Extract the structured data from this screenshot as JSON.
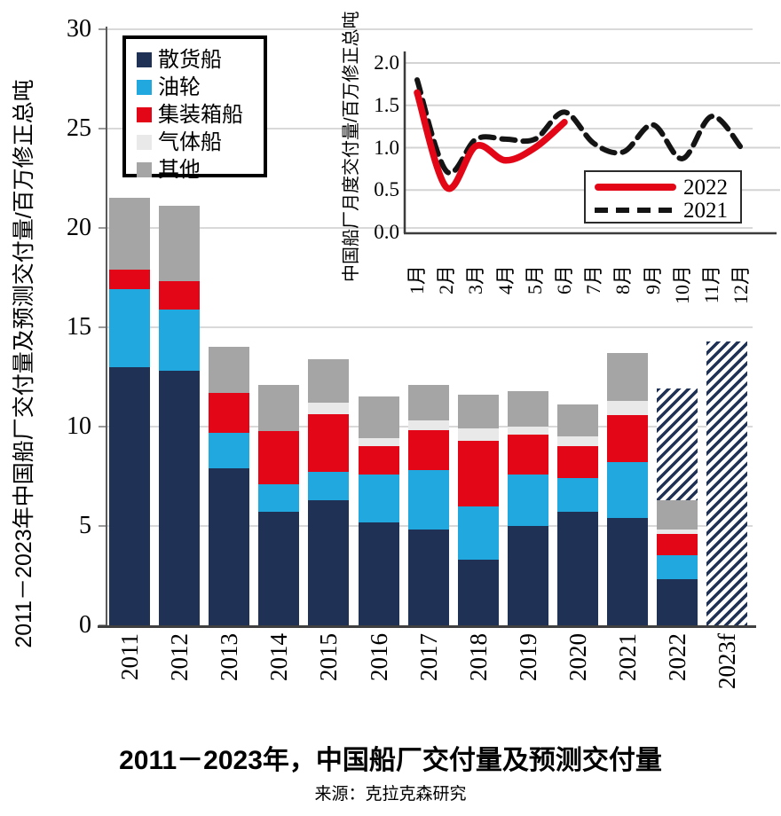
{
  "caption": {
    "title": "2011－2023年，中国船厂交付量及预测交付量",
    "source": "来源：克拉克森研究"
  },
  "chart_data": [
    {
      "type": "bar",
      "stacked": true,
      "ylabel": "2011－2023年中国船厂交付量及预测交付量/百万修正总吨",
      "categories": [
        "2011",
        "2012",
        "2013",
        "2014",
        "2015",
        "2016",
        "2017",
        "2018",
        "2019",
        "2020",
        "2021",
        "2022",
        "2023f"
      ],
      "series": [
        {
          "name": "散货船",
          "color": "#1f3154",
          "values": [
            13.0,
            12.8,
            7.9,
            5.7,
            6.3,
            5.2,
            4.8,
            3.3,
            5.0,
            5.7,
            5.4,
            2.3,
            0
          ]
        },
        {
          "name": "油轮",
          "color": "#21a8de",
          "values": [
            3.9,
            3.1,
            1.8,
            1.4,
            1.4,
            2.4,
            3.0,
            2.7,
            2.6,
            1.7,
            2.8,
            1.2,
            0
          ]
        },
        {
          "name": "集装箱船",
          "color": "#e30617",
          "values": [
            1.0,
            1.4,
            2.0,
            2.7,
            2.9,
            1.4,
            2.0,
            3.3,
            2.0,
            1.6,
            2.4,
            1.1,
            0
          ]
        },
        {
          "name": "气体船",
          "color": "#e9e9e9",
          "values": [
            0,
            0,
            0,
            0,
            0.6,
            0.4,
            0.5,
            0.6,
            0.4,
            0.5,
            0.7,
            0.2,
            0
          ]
        },
        {
          "name": "其他",
          "color": "#a5a5a5",
          "values": [
            3.6,
            3.8,
            2.3,
            2.3,
            2.2,
            2.1,
            1.8,
            1.7,
            1.8,
            1.6,
            2.4,
            1.5,
            0
          ]
        }
      ],
      "forecast_hatch": {
        "name": "预测交付量(斜线填充)",
        "values": [
          0,
          0,
          0,
          0,
          0,
          0,
          0,
          0,
          0,
          0,
          0,
          5.6,
          14.3
        ]
      },
      "ylim": [
        0,
        30
      ],
      "yticks": [
        0,
        5,
        10,
        15,
        20,
        25,
        30
      ],
      "grid": true,
      "legend_position": "top-left"
    },
    {
      "type": "line",
      "ylabel": "中国船厂月度交付量/百万修正总吨",
      "x": [
        "1月",
        "2月",
        "3月",
        "4月",
        "5月",
        "6月",
        "7月",
        "8月",
        "9月",
        "10月",
        "11月",
        "12月"
      ],
      "series": [
        {
          "name": "2022",
          "color": "#e30617",
          "style": "solid",
          "values": [
            1.65,
            0.53,
            1.02,
            0.85,
            1.0,
            1.3,
            null,
            null,
            null,
            null,
            null,
            null
          ]
        },
        {
          "name": "2021",
          "color": "#141414",
          "style": "dashed",
          "values": [
            1.8,
            0.72,
            1.1,
            1.1,
            1.1,
            1.42,
            1.05,
            0.95,
            1.27,
            0.87,
            1.37,
            1.0
          ]
        }
      ],
      "ylim": [
        0,
        2
      ],
      "yticks": [
        "0.0",
        "0.5",
        "1.0",
        "1.5",
        "2.0"
      ],
      "grid": true,
      "legend_position": "bottom-right"
    }
  ]
}
